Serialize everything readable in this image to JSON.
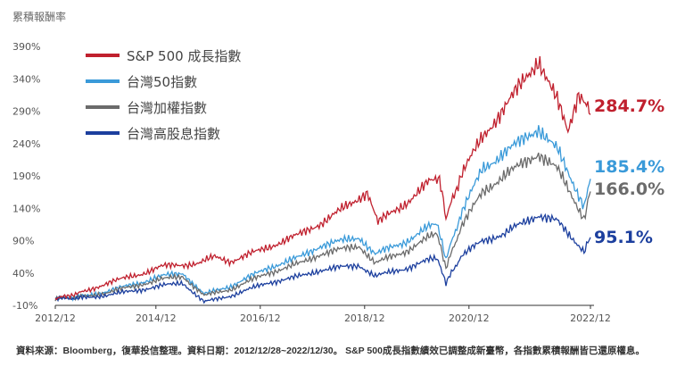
{
  "chart_data": {
    "type": "line",
    "ylabel": "累積報酬率",
    "yticks": [
      "390%",
      "340%",
      "290%",
      "240%",
      "190%",
      "140%",
      "90%",
      "40%",
      "-10%"
    ],
    "yvals": [
      390,
      340,
      290,
      240,
      190,
      140,
      90,
      40,
      -10
    ],
    "ylim": [
      -10,
      390
    ],
    "xlim": [
      2012.92,
      2022.92
    ],
    "xticks": [
      {
        "label": "2012/12",
        "v": 2012.92
      },
      {
        "label": "2014/12",
        "v": 2014.8
      },
      {
        "label": "2016/12",
        "v": 2016.75
      },
      {
        "label": "2018/12",
        "v": 2018.7
      },
      {
        "label": "2020/12",
        "v": 2020.65
      },
      {
        "label": "2022/12",
        "v": 2022.92
      }
    ],
    "legend_position": "top-left",
    "series": [
      {
        "name": "S&P 500 成長指數",
        "color": "#c0202e",
        "end_label": "284.7%",
        "points": [
          [
            2012.92,
            0
          ],
          [
            2013.5,
            12
          ],
          [
            2013.9,
            25
          ],
          [
            2014.5,
            38
          ],
          [
            2014.9,
            50
          ],
          [
            2015.6,
            55
          ],
          [
            2015.9,
            65
          ],
          [
            2016.2,
            58
          ],
          [
            2016.9,
            80
          ],
          [
            2017.5,
            100
          ],
          [
            2017.9,
            118
          ],
          [
            2018.5,
            150
          ],
          [
            2018.75,
            166
          ],
          [
            2018.95,
            118
          ],
          [
            2019.5,
            150
          ],
          [
            2019.9,
            180
          ],
          [
            2020.1,
            185
          ],
          [
            2020.22,
            125
          ],
          [
            2020.5,
            190
          ],
          [
            2020.9,
            250
          ],
          [
            2021.4,
            305
          ],
          [
            2021.7,
            340
          ],
          [
            2021.95,
            370
          ],
          [
            2022.3,
            305
          ],
          [
            2022.5,
            257
          ],
          [
            2022.7,
            320
          ],
          [
            2022.92,
            284.7
          ]
        ]
      },
      {
        "name": "台灣50指數",
        "color": "#3a9ad9",
        "end_label": "185.4%",
        "points": [
          [
            2012.92,
            0
          ],
          [
            2013.5,
            5
          ],
          [
            2013.9,
            12
          ],
          [
            2014.5,
            25
          ],
          [
            2014.9,
            35
          ],
          [
            2015.3,
            40
          ],
          [
            2015.7,
            7
          ],
          [
            2016.2,
            20
          ],
          [
            2016.9,
            48
          ],
          [
            2017.5,
            65
          ],
          [
            2017.9,
            83
          ],
          [
            2018.6,
            95
          ],
          [
            2018.9,
            69
          ],
          [
            2019.5,
            90
          ],
          [
            2019.9,
            111
          ],
          [
            2020.05,
            115
          ],
          [
            2020.22,
            62
          ],
          [
            2020.5,
            130
          ],
          [
            2020.9,
            201
          ],
          [
            2021.3,
            225
          ],
          [
            2021.5,
            236
          ],
          [
            2021.95,
            264
          ],
          [
            2022.3,
            230
          ],
          [
            2022.5,
            194
          ],
          [
            2022.8,
            145
          ],
          [
            2022.92,
            185.4
          ]
        ]
      },
      {
        "name": "台灣加權指數",
        "color": "#6b6b6b",
        "end_label": "166.0%",
        "points": [
          [
            2012.92,
            0
          ],
          [
            2013.5,
            4
          ],
          [
            2013.9,
            10
          ],
          [
            2014.5,
            22
          ],
          [
            2014.9,
            30
          ],
          [
            2015.3,
            35
          ],
          [
            2015.7,
            5
          ],
          [
            2016.2,
            15
          ],
          [
            2016.9,
            40
          ],
          [
            2017.5,
            55
          ],
          [
            2017.9,
            70
          ],
          [
            2018.6,
            82
          ],
          [
            2018.9,
            55
          ],
          [
            2019.5,
            75
          ],
          [
            2019.9,
            95
          ],
          [
            2020.05,
            100
          ],
          [
            2020.22,
            48
          ],
          [
            2020.5,
            110
          ],
          [
            2020.9,
            165
          ],
          [
            2021.3,
            190
          ],
          [
            2021.5,
            200
          ],
          [
            2021.95,
            225
          ],
          [
            2022.3,
            200
          ],
          [
            2022.5,
            170
          ],
          [
            2022.8,
            125
          ],
          [
            2022.92,
            166.0
          ]
        ]
      },
      {
        "name": "台灣高股息指數",
        "color": "#1c3f9e",
        "end_label": "95.1%",
        "points": [
          [
            2012.92,
            0
          ],
          [
            2013.5,
            2
          ],
          [
            2013.9,
            6
          ],
          [
            2014.5,
            14
          ],
          [
            2014.9,
            20
          ],
          [
            2015.3,
            25
          ],
          [
            2015.7,
            -5
          ],
          [
            2016.2,
            5
          ],
          [
            2016.9,
            25
          ],
          [
            2017.5,
            35
          ],
          [
            2017.9,
            45
          ],
          [
            2018.6,
            52
          ],
          [
            2018.9,
            35
          ],
          [
            2019.5,
            48
          ],
          [
            2019.9,
            60
          ],
          [
            2020.05,
            62
          ],
          [
            2020.22,
            25
          ],
          [
            2020.5,
            65
          ],
          [
            2020.9,
            90
          ],
          [
            2021.3,
            100
          ],
          [
            2021.5,
            110
          ],
          [
            2021.95,
            130
          ],
          [
            2022.3,
            120
          ],
          [
            2022.5,
            100
          ],
          [
            2022.8,
            75
          ],
          [
            2022.92,
            95.1
          ]
        ]
      }
    ]
  },
  "footnote": "資料來源：Bloomberg，復華投信整理。資料日期：2012/12/28~2022/12/30。 S&P 500成長指數績效已調整成新臺幣，各指數累積報酬皆已還原權息。"
}
